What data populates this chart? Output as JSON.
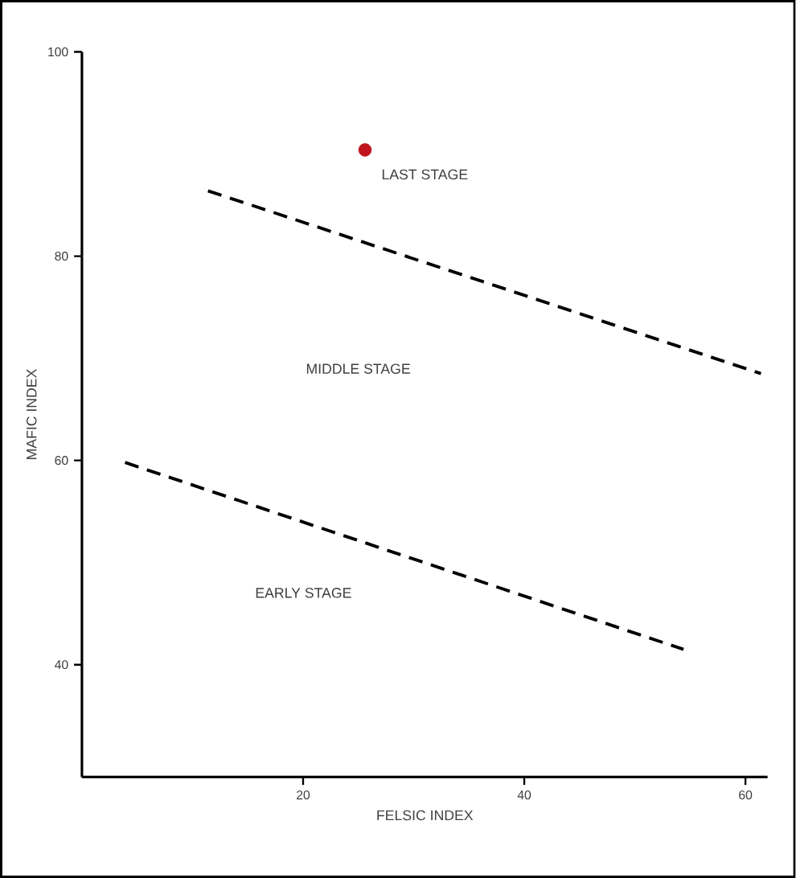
{
  "chart_data": {
    "type": "line",
    "xlabel": "FELSIC INDEX",
    "ylabel": "MAFIC INDEX",
    "xlim": [
      0,
      62
    ],
    "ylim": [
      29,
      100
    ],
    "xticks": [
      20,
      40,
      60
    ],
    "yticks": [
      40,
      60,
      80,
      100
    ],
    "grid": false,
    "series": [
      {
        "color": "#000000",
        "line_style": "dashed",
        "marker": "none",
        "x": [
          11.4,
          61.4
        ],
        "values": [
          86.4,
          68.5
        ]
      },
      {
        "color": "#000000",
        "line_style": "dashed",
        "marker": "none",
        "x": [
          3.9,
          54.4
        ],
        "values": [
          59.8,
          41.5
        ]
      },
      {
        "type": "scatter",
        "color": "#c0141c",
        "marker": "circle",
        "x": [
          25.6
        ],
        "values": [
          90.4
        ]
      }
    ],
    "annotations": [
      "LAST STAGE",
      "MIDDLE STAGE",
      "EARLY STAGE"
    ]
  }
}
